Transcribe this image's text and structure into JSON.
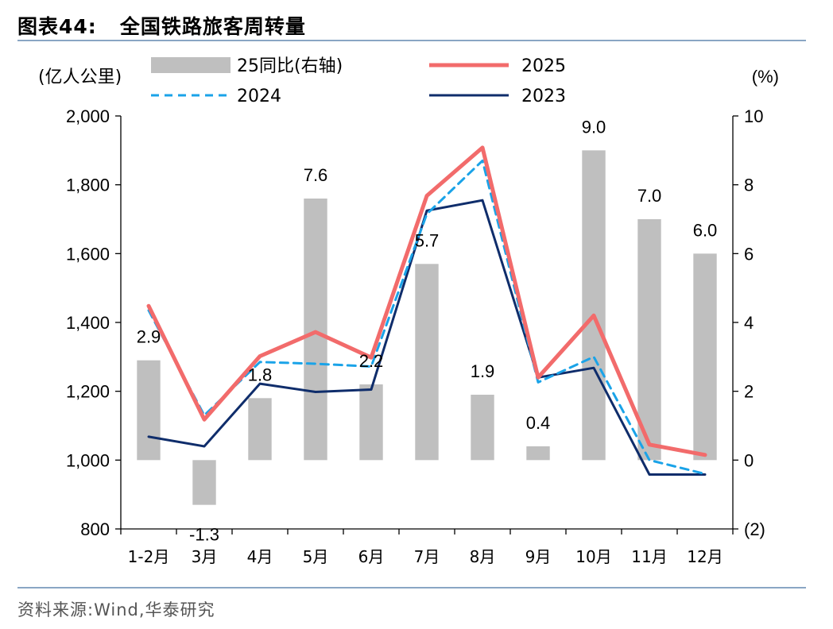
{
  "header": {
    "title": "图表44:   全国铁路旅客周转量"
  },
  "footer": {
    "source": "资料来源:Wind,华泰研究"
  },
  "chart_data": {
    "type": "bar+line",
    "title": "全国铁路旅客周转量",
    "ylabel_left": "(亿人公里)",
    "ylabel_right": "(%)",
    "ylim_left": [
      800,
      2000
    ],
    "ylim_right": [
      -2,
      10
    ],
    "left_ticks": [
      "800",
      "1,000",
      "1,200",
      "1,400",
      "1,600",
      "1,800",
      "2,000"
    ],
    "left_tick_values": [
      800,
      1000,
      1200,
      1400,
      1600,
      1800,
      2000
    ],
    "right_ticks": [
      "(2)",
      "0",
      "2",
      "4",
      "6",
      "8",
      "10"
    ],
    "right_tick_values": [
      -2,
      0,
      2,
      4,
      6,
      8,
      10
    ],
    "categories": [
      "1-2月",
      "3月",
      "4月",
      "5月",
      "6月",
      "7月",
      "8月",
      "9月",
      "10月",
      "11月",
      "12月"
    ],
    "bars": {
      "name": "25同比(右轴)",
      "axis": "right",
      "color": "#bfbfbf",
      "values": [
        2.9,
        -1.3,
        1.8,
        7.6,
        2.2,
        5.7,
        1.9,
        0.4,
        9.0,
        7.0,
        6.0
      ],
      "labels": [
        "2.9",
        "-1.3",
        "1.8",
        "7.6",
        "2.2",
        "5.7",
        "1.9",
        "0.4",
        "9.0",
        "7.0",
        "6.0"
      ]
    },
    "series": [
      {
        "name": "2025",
        "axis": "left",
        "color": "#f26b6b",
        "style": "solid",
        "width": 5,
        "values": [
          1448,
          1118,
          1302,
          1372,
          1298,
          1768,
          1908,
          1240,
          1420,
          1045,
          1015
        ]
      },
      {
        "name": "2024",
        "axis": "left",
        "color": "#1aa3e8",
        "style": "dashed",
        "width": 3,
        "values": [
          1435,
          1130,
          1285,
          1280,
          1272,
          1715,
          1870,
          1226,
          1300,
          1000,
          960
        ]
      },
      {
        "name": "2023",
        "axis": "left",
        "color": "#0f2d6b",
        "style": "solid",
        "width": 3,
        "values": [
          1068,
          1040,
          1222,
          1198,
          1205,
          1725,
          1755,
          1240,
          1268,
          958,
          958
        ]
      }
    ],
    "legend": [
      {
        "label": "25同比(右轴)",
        "kind": "bar",
        "color": "#bfbfbf"
      },
      {
        "label": "2025",
        "kind": "line",
        "color": "#f26b6b",
        "style": "solid"
      },
      {
        "label": "2024",
        "kind": "line",
        "color": "#1aa3e8",
        "style": "dashed"
      },
      {
        "label": "2023",
        "kind": "line",
        "color": "#0f2d6b",
        "style": "solid"
      }
    ],
    "legend_position": "top",
    "grid": false
  }
}
